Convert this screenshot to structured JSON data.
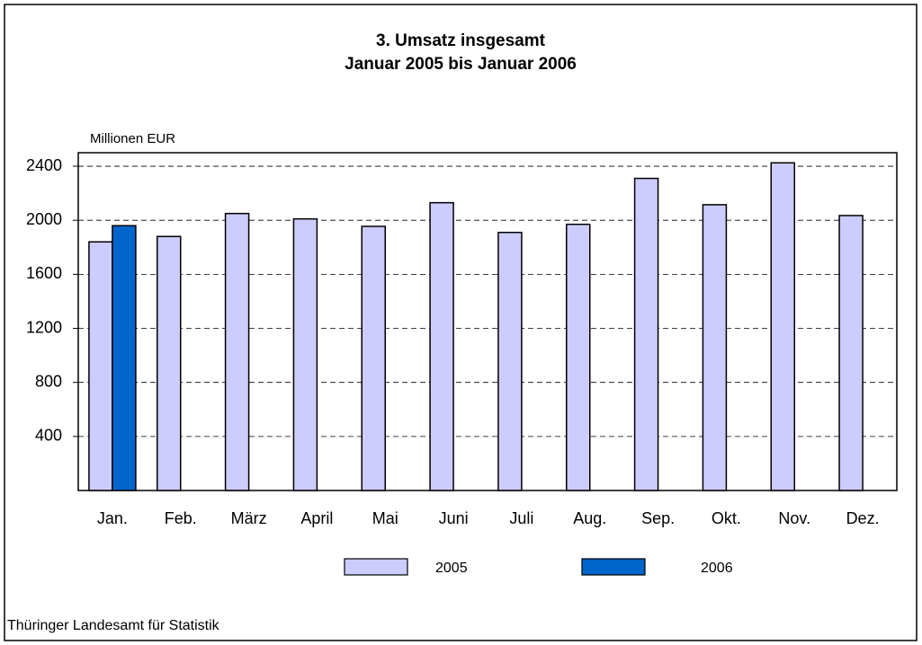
{
  "chart_data": {
    "type": "bar",
    "title": "3. Umsatz insgesamt",
    "subtitle": "Januar 2005 bis Januar 2006",
    "ylabel": "Millionen EUR",
    "source": "Thüringer Landesamt für Statistik",
    "categories": [
      "Jan.",
      "Feb.",
      "März",
      "April",
      "Mai",
      "Juni",
      "Juli",
      "Aug.",
      "Sep.",
      "Okt.",
      "Nov.",
      "Dez."
    ],
    "series": [
      {
        "name": "2005",
        "color": "#ccccff",
        "values": [
          1840,
          1880,
          2050,
          2010,
          1955,
          2130,
          1910,
          1970,
          2310,
          2115,
          2425,
          2035
        ]
      },
      {
        "name": "2006",
        "color": "#0066cc",
        "values": [
          1960,
          null,
          null,
          null,
          null,
          null,
          null,
          null,
          null,
          null,
          null,
          null
        ]
      }
    ],
    "ylim": [
      0,
      2500
    ],
    "yticks": [
      400,
      800,
      1200,
      1600,
      2000,
      2400
    ],
    "grid": true
  }
}
